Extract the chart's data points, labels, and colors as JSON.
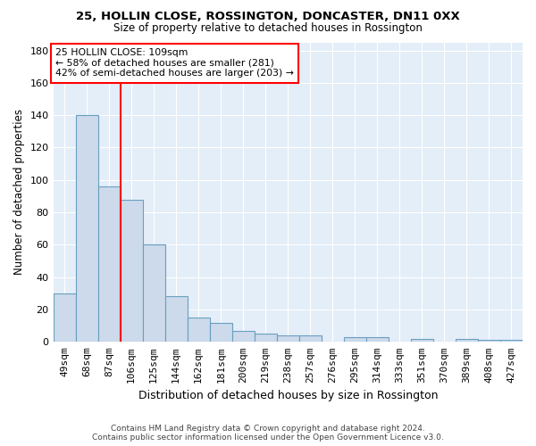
{
  "title1": "25, HOLLIN CLOSE, ROSSINGTON, DONCASTER, DN11 0XX",
  "title2": "Size of property relative to detached houses in Rossington",
  "xlabel": "Distribution of detached houses by size in Rossington",
  "ylabel": "Number of detached properties",
  "bar_color": "#ccdaeb",
  "bar_edge_color": "#6a9fc0",
  "background_color": "#e4eef8",
  "categories": [
    "49sqm",
    "68sqm",
    "87sqm",
    "106sqm",
    "125sqm",
    "144sqm",
    "162sqm",
    "181sqm",
    "200sqm",
    "219sqm",
    "238sqm",
    "257sqm",
    "276sqm",
    "295sqm",
    "314sqm",
    "333sqm",
    "351sqm",
    "370sqm",
    "389sqm",
    "408sqm",
    "427sqm"
  ],
  "values": [
    30,
    140,
    96,
    88,
    60,
    28,
    15,
    12,
    7,
    5,
    4,
    4,
    0,
    3,
    3,
    0,
    2,
    0,
    2,
    1,
    1
  ],
  "red_line_x": 2.5,
  "annotation_text": "25 HOLLIN CLOSE: 109sqm\n← 58% of detached houses are smaller (281)\n42% of semi-detached houses are larger (203) →",
  "annotation_box_color": "white",
  "annotation_box_edge": "red",
  "footnote": "Contains HM Land Registry data © Crown copyright and database right 2024.\nContains public sector information licensed under the Open Government Licence v3.0.",
  "ylim": [
    0,
    185
  ],
  "yticks": [
    0,
    20,
    40,
    60,
    80,
    100,
    120,
    140,
    160,
    180
  ]
}
